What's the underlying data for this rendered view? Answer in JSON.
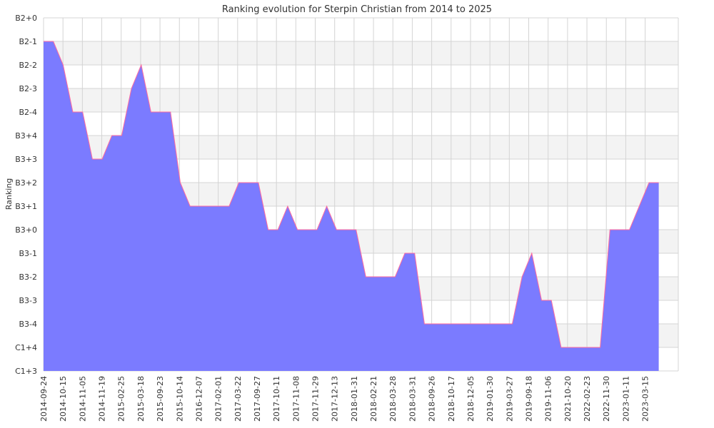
{
  "chart_data": {
    "type": "area",
    "title": "Ranking evolution for Sterpin Christian from 2014 to 2025",
    "xlabel": "",
    "ylabel": "Ranking",
    "y_categories": [
      "C1+3",
      "C1+4",
      "B3-4",
      "B3-3",
      "B3-2",
      "B3-1",
      "B3+0",
      "B3+1",
      "B3+2",
      "B3+3",
      "B3+4",
      "B2-4",
      "B2-3",
      "B2-2",
      "B2-1",
      "B2+0"
    ],
    "x_tick_labels": [
      "2014-09-24",
      "2014-10-15",
      "2014-11-05",
      "2014-11-19",
      "2015-02-25",
      "2015-03-18",
      "2015-09-23",
      "2015-10-14",
      "2016-12-07",
      "2017-02-01",
      "2017-03-22",
      "2017-09-27",
      "2017-10-11",
      "2017-11-08",
      "2017-11-29",
      "2017-12-13",
      "2018-01-31",
      "2018-02-21",
      "2018-03-28",
      "2018-03-31",
      "2018-09-26",
      "2018-10-17",
      "2018-12-05",
      "2019-01-30",
      "2019-03-27",
      "2019-09-18",
      "2019-11-06",
      "2021-10-20",
      "2022-02-23",
      "2022-11-30",
      "2023-01-11",
      "2023-03-15"
    ],
    "series": [
      {
        "values": [
          "B2-1",
          "B2-1",
          "B2-2",
          "B2-4",
          "B2-4",
          "B3+3",
          "B3+3",
          "B3+4",
          "B3+4",
          "B2-3",
          "B2-2",
          "B2-4",
          "B2-4",
          "B2-4",
          "B3+2",
          "B3+1",
          "B3+1",
          "B3+1",
          "B3+1",
          "B3+1",
          "B3+2",
          "B3+2",
          "B3+2",
          "B3+0",
          "B3+0",
          "B3+1",
          "B3+0",
          "B3+0",
          "B3+0",
          "B3+1",
          "B3+0",
          "B3+0",
          "B3+0",
          "B3-2",
          "B3-2",
          "B3-2",
          "B3-2",
          "B3-1",
          "B3-1",
          "B3-4",
          "B3-4",
          "B3-4",
          "B3-4",
          "B3-4",
          "B3-4",
          "B3-4",
          "B3-4",
          "B3-4",
          "B3-4",
          "B3-2",
          "B3-1",
          "B3-3",
          "B3-3",
          "C1+4",
          "C1+4",
          "C1+4",
          "C1+4",
          "C1+4",
          "B3+0",
          "B3+0",
          "B3+0",
          "B3+1",
          "B3+2",
          "B3+2"
        ]
      }
    ],
    "grid": true,
    "legend": "none",
    "colors": {
      "area_fill": "#7b7bff",
      "line": "#ff6b9e",
      "grid": "#d4d4d4",
      "band": "#f3f3f3"
    }
  }
}
